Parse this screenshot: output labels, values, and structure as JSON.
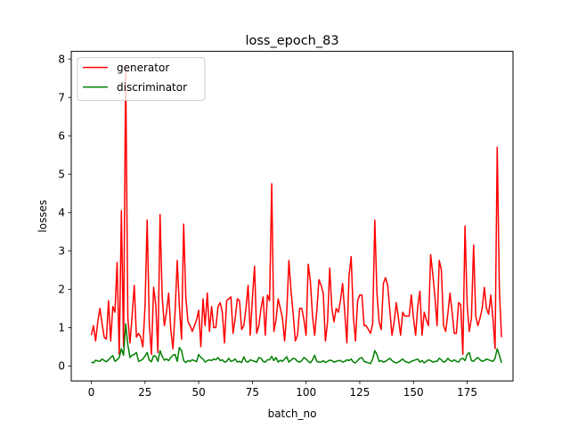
{
  "chart_data": {
    "type": "line",
    "title": "loss_epoch_83",
    "xlabel": "batch_no",
    "ylabel": "losses",
    "xlim": [
      -9.35,
      196.35
    ],
    "ylim": [
      -0.39,
      8.2
    ],
    "xticks": [
      0,
      25,
      50,
      75,
      100,
      125,
      150,
      175
    ],
    "yticks": [
      0,
      1,
      2,
      3,
      4,
      5,
      6,
      7,
      8
    ],
    "legend_position": "top-left",
    "grid": false,
    "series": [
      {
        "name": "generator",
        "color": "#ff0000",
        "values": [
          0.8,
          1.05,
          0.65,
          1.15,
          1.5,
          1.1,
          0.75,
          0.7,
          1.7,
          0.65,
          1.55,
          1.4,
          2.7,
          0.3,
          4.05,
          0.5,
          7.8,
          1.25,
          0.6,
          1.3,
          2.1,
          0.75,
          0.85,
          0.75,
          0.5,
          1.55,
          3.8,
          1.1,
          0.3,
          2.05,
          1.6,
          0.35,
          3.95,
          1.8,
          1.05,
          1.4,
          1.9,
          0.95,
          0.45,
          1.4,
          2.75,
          1.55,
          0.7,
          3.7,
          1.8,
          1.15,
          1.05,
          0.9,
          1.05,
          1.2,
          1.45,
          0.5,
          1.75,
          1.05,
          1.9,
          0.9,
          1.55,
          1.0,
          1.0,
          1.55,
          1.65,
          1.4,
          0.6,
          1.7,
          1.75,
          1.8,
          0.85,
          1.25,
          1.75,
          1.7,
          0.95,
          1.05,
          1.5,
          2.1,
          0.8,
          1.75,
          2.6,
          0.85,
          1.05,
          1.5,
          1.8,
          0.8,
          1.85,
          1.7,
          4.75,
          0.9,
          1.2,
          1.75,
          1.5,
          1.25,
          0.65,
          1.4,
          2.75,
          1.95,
          1.35,
          0.65,
          0.8,
          1.5,
          1.5,
          1.2,
          0.8,
          2.65,
          2.2,
          1.3,
          0.8,
          1.45,
          2.25,
          2.1,
          1.9,
          0.65,
          1.15,
          2.55,
          1.5,
          1.15,
          1.5,
          1.4,
          1.7,
          2.15,
          1.4,
          0.6,
          2.35,
          2.85,
          1.3,
          0.65,
          1.7,
          1.85,
          1.85,
          1.05,
          1.05,
          0.95,
          0.85,
          1.1,
          3.8,
          1.9,
          1.15,
          0.95,
          2.15,
          2.3,
          2.1,
          1.45,
          0.8,
          1.15,
          1.65,
          1.25,
          0.8,
          1.4,
          1.3,
          1.3,
          1.3,
          1.85,
          1.25,
          0.8,
          1.55,
          1.95,
          0.8,
          1.4,
          1.2,
          1.05,
          2.9,
          2.4,
          1.8,
          1.05,
          2.75,
          2.5,
          1.05,
          0.9,
          1.35,
          1.9,
          1.4,
          0.85,
          0.85,
          1.65,
          1.6,
          0.3,
          3.65,
          1.6,
          0.9,
          1.25,
          3.15,
          1.3,
          1.05,
          1.25,
          1.5,
          2.05,
          1.5,
          1.35,
          1.85,
          1.25,
          0.45,
          5.7,
          2.0,
          0.75
        ]
      },
      {
        "name": "discriminator",
        "color": "#008000",
        "values": [
          0.1,
          0.08,
          0.15,
          0.13,
          0.12,
          0.18,
          0.14,
          0.11,
          0.16,
          0.22,
          0.27,
          0.12,
          0.16,
          0.22,
          0.45,
          0.28,
          1.1,
          0.55,
          0.22,
          0.28,
          0.3,
          0.35,
          0.12,
          0.14,
          0.18,
          0.26,
          0.35,
          0.15,
          0.11,
          0.27,
          0.25,
          0.12,
          0.4,
          0.25,
          0.15,
          0.18,
          0.14,
          0.22,
          0.28,
          0.3,
          0.12,
          0.48,
          0.4,
          0.14,
          0.09,
          0.14,
          0.12,
          0.16,
          0.14,
          0.11,
          0.3,
          0.22,
          0.18,
          0.1,
          0.14,
          0.16,
          0.14,
          0.18,
          0.16,
          0.22,
          0.14,
          0.16,
          0.1,
          0.12,
          0.2,
          0.12,
          0.14,
          0.18,
          0.1,
          0.12,
          0.09,
          0.24,
          0.12,
          0.1,
          0.16,
          0.14,
          0.12,
          0.1,
          0.22,
          0.2,
          0.12,
          0.1,
          0.16,
          0.16,
          0.25,
          0.14,
          0.22,
          0.1,
          0.15,
          0.12,
          0.18,
          0.24,
          0.1,
          0.15,
          0.2,
          0.18,
          0.12,
          0.1,
          0.14,
          0.22,
          0.18,
          0.12,
          0.08,
          0.16,
          0.28,
          0.12,
          0.1,
          0.1,
          0.14,
          0.09,
          0.12,
          0.15,
          0.14,
          0.1,
          0.12,
          0.14,
          0.14,
          0.1,
          0.12,
          0.16,
          0.14,
          0.18,
          0.1,
          0.08,
          0.14,
          0.2,
          0.22,
          0.12,
          0.1,
          0.08,
          0.06,
          0.18,
          0.4,
          0.3,
          0.12,
          0.14,
          0.1,
          0.12,
          0.16,
          0.2,
          0.14,
          0.1,
          0.08,
          0.1,
          0.14,
          0.18,
          0.12,
          0.1,
          0.08,
          0.12,
          0.14,
          0.16,
          0.18,
          0.1,
          0.14,
          0.08,
          0.12,
          0.16,
          0.14,
          0.1,
          0.12,
          0.12,
          0.2,
          0.16,
          0.1,
          0.12,
          0.2,
          0.14,
          0.12,
          0.16,
          0.12,
          0.1,
          0.18,
          0.2,
          0.14,
          0.3,
          0.35,
          0.14,
          0.12,
          0.18,
          0.22,
          0.16,
          0.12,
          0.14,
          0.18,
          0.16,
          0.14,
          0.12,
          0.2,
          0.45,
          0.28,
          0.08
        ]
      }
    ]
  }
}
